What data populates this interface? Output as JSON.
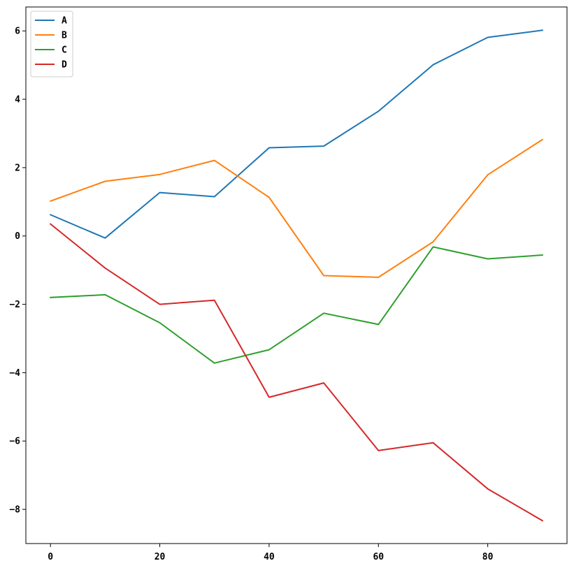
{
  "chart_data": {
    "type": "line",
    "title": "",
    "xlabel": "",
    "ylabel": "",
    "x": [
      0,
      10,
      20,
      30,
      40,
      50,
      60,
      70,
      80,
      90
    ],
    "xlim": [
      -4.5,
      94.5
    ],
    "ylim": [
      -9.0,
      6.7
    ],
    "xticks": [
      0,
      20,
      40,
      60,
      80
    ],
    "yticks": [
      6,
      4,
      2,
      0,
      -2,
      -4,
      -6,
      -8
    ],
    "xtick_labels": [
      "0",
      "20",
      "40",
      "60",
      "80"
    ],
    "ytick_labels": [
      "6",
      "4",
      "2",
      "0",
      "−2",
      "−4",
      "−6",
      "−8"
    ],
    "grid": false,
    "legend_position": "top-left",
    "series": [
      {
        "name": "A",
        "color": "#1f77b4",
        "values": [
          0.62,
          -0.06,
          1.27,
          1.15,
          2.58,
          2.63,
          3.65,
          5.01,
          5.81,
          6.02
        ]
      },
      {
        "name": "B",
        "color": "#ff7f0e",
        "values": [
          1.02,
          1.6,
          1.8,
          2.21,
          1.13,
          -1.16,
          -1.21,
          -0.17,
          1.79,
          2.82
        ]
      },
      {
        "name": "C",
        "color": "#2ca02c",
        "values": [
          -1.8,
          -1.72,
          -2.54,
          -3.72,
          -3.33,
          -2.26,
          -2.59,
          -0.32,
          -0.67,
          -0.56
        ]
      },
      {
        "name": "D",
        "color": "#d62728",
        "values": [
          0.35,
          -0.94,
          -2.0,
          -1.88,
          -4.72,
          -4.3,
          -6.28,
          -6.05,
          -7.4,
          -8.33
        ]
      }
    ]
  }
}
